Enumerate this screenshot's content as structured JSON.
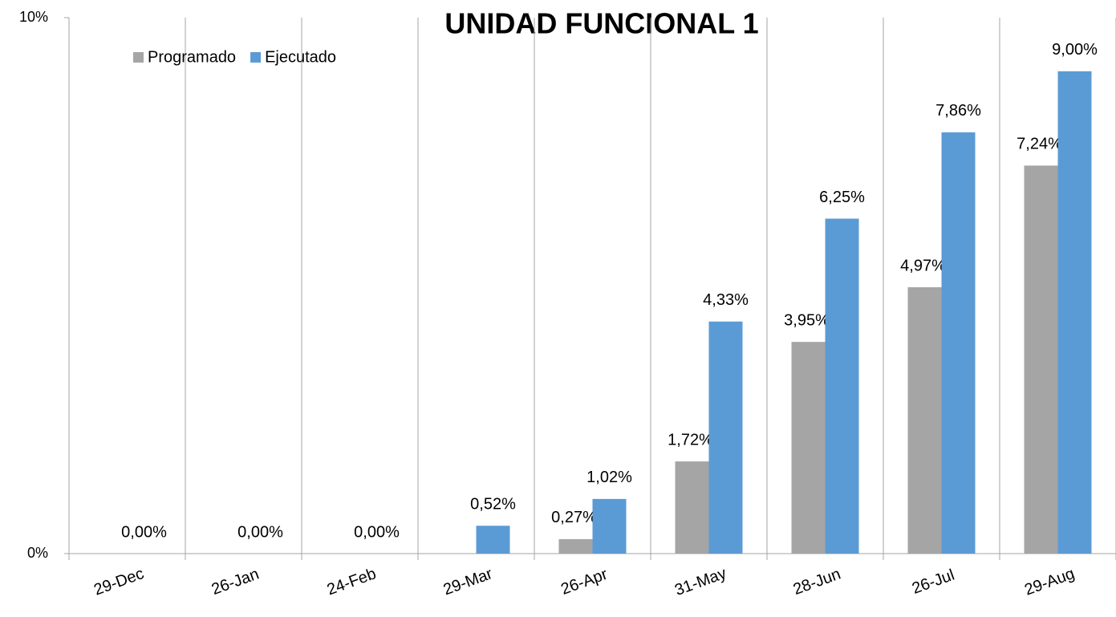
{
  "chart_data": {
    "type": "bar",
    "title": "UNIDAD FUNCIONAL 1",
    "categories": [
      "29-Dec",
      "26-Jan",
      "24-Feb",
      "29-Mar",
      "26-Apr",
      "31-May",
      "28-Jun",
      "26-Jul",
      "29-Aug"
    ],
    "series": [
      {
        "name": "Programado",
        "color": "#a5a5a5",
        "values": [
          null,
          null,
          null,
          null,
          0.27,
          1.72,
          3.95,
          4.97,
          7.24
        ],
        "value_labels": [
          null,
          null,
          null,
          null,
          "0,27%",
          "1,72%",
          "3,95%",
          "4,97%",
          "7,24%"
        ]
      },
      {
        "name": "Ejecutado",
        "color": "#5b9bd5",
        "values": [
          0,
          0,
          0,
          0.52,
          1.02,
          4.33,
          6.25,
          7.86,
          9.0
        ],
        "value_labels": [
          "0,00%",
          "0,00%",
          "0,00%",
          "0,52%",
          "1,02%",
          "4,33%",
          "6,25%",
          "7,86%",
          "9,00%"
        ]
      }
    ],
    "ylim": [
      0,
      10
    ],
    "yticks": [
      {
        "value": 0,
        "label": "0%"
      },
      {
        "value": 10,
        "label": "10%"
      }
    ],
    "legend": "top-left"
  }
}
